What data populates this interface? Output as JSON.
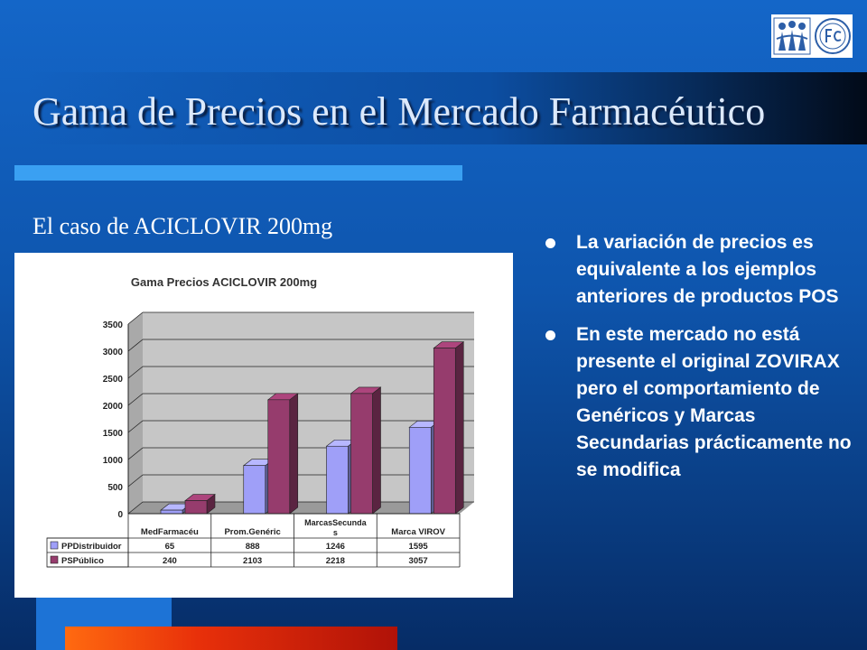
{
  "slide": {
    "title": "Gama de Precios en el Mercado Farmacéutico",
    "subtitle": "El caso de ACICLOVIR 200mg",
    "bullets": [
      "La variación de precios es equivalente a los ejemplos anteriores de productos POS",
      "En este mercado no está presente el original ZOVIRAX pero el comportamiento de Genéricos y Marcas Secundarias prácticamente no se modifica"
    ],
    "colors": {
      "background": "#1466c8",
      "title_text": "#dce9fb",
      "accent_bar": "#3aa0f2",
      "bottom_bar": "#e8300a"
    },
    "logo_icons": [
      "people-logo-icon",
      "fc-seal-icon"
    ]
  },
  "chart_data": {
    "type": "bar",
    "title": "Gama Precios ACICLOVIR 200mg",
    "categories": [
      "MedFarmacéu",
      "Prom.Genéric",
      "MarcasSecundas",
      "Marca VIROV"
    ],
    "series": [
      {
        "name": "PPDistribuidor",
        "values": [
          65,
          888,
          1246,
          1595
        ],
        "color": "#9f9ff8"
      },
      {
        "name": "PSPúblico",
        "values": [
          240,
          2103,
          2218,
          3057
        ],
        "color": "#963c6d"
      }
    ],
    "yticks": [
      "0",
      "500",
      "1000",
      "1500",
      "2000",
      "2500",
      "3000",
      "3500"
    ],
    "ylim": [
      0,
      3500
    ],
    "grid": true,
    "legend": "data-table",
    "table_rows": [
      [
        "65",
        "888",
        "1246",
        "1595"
      ],
      [
        "240",
        "2103",
        "2218",
        "3057"
      ]
    ]
  }
}
